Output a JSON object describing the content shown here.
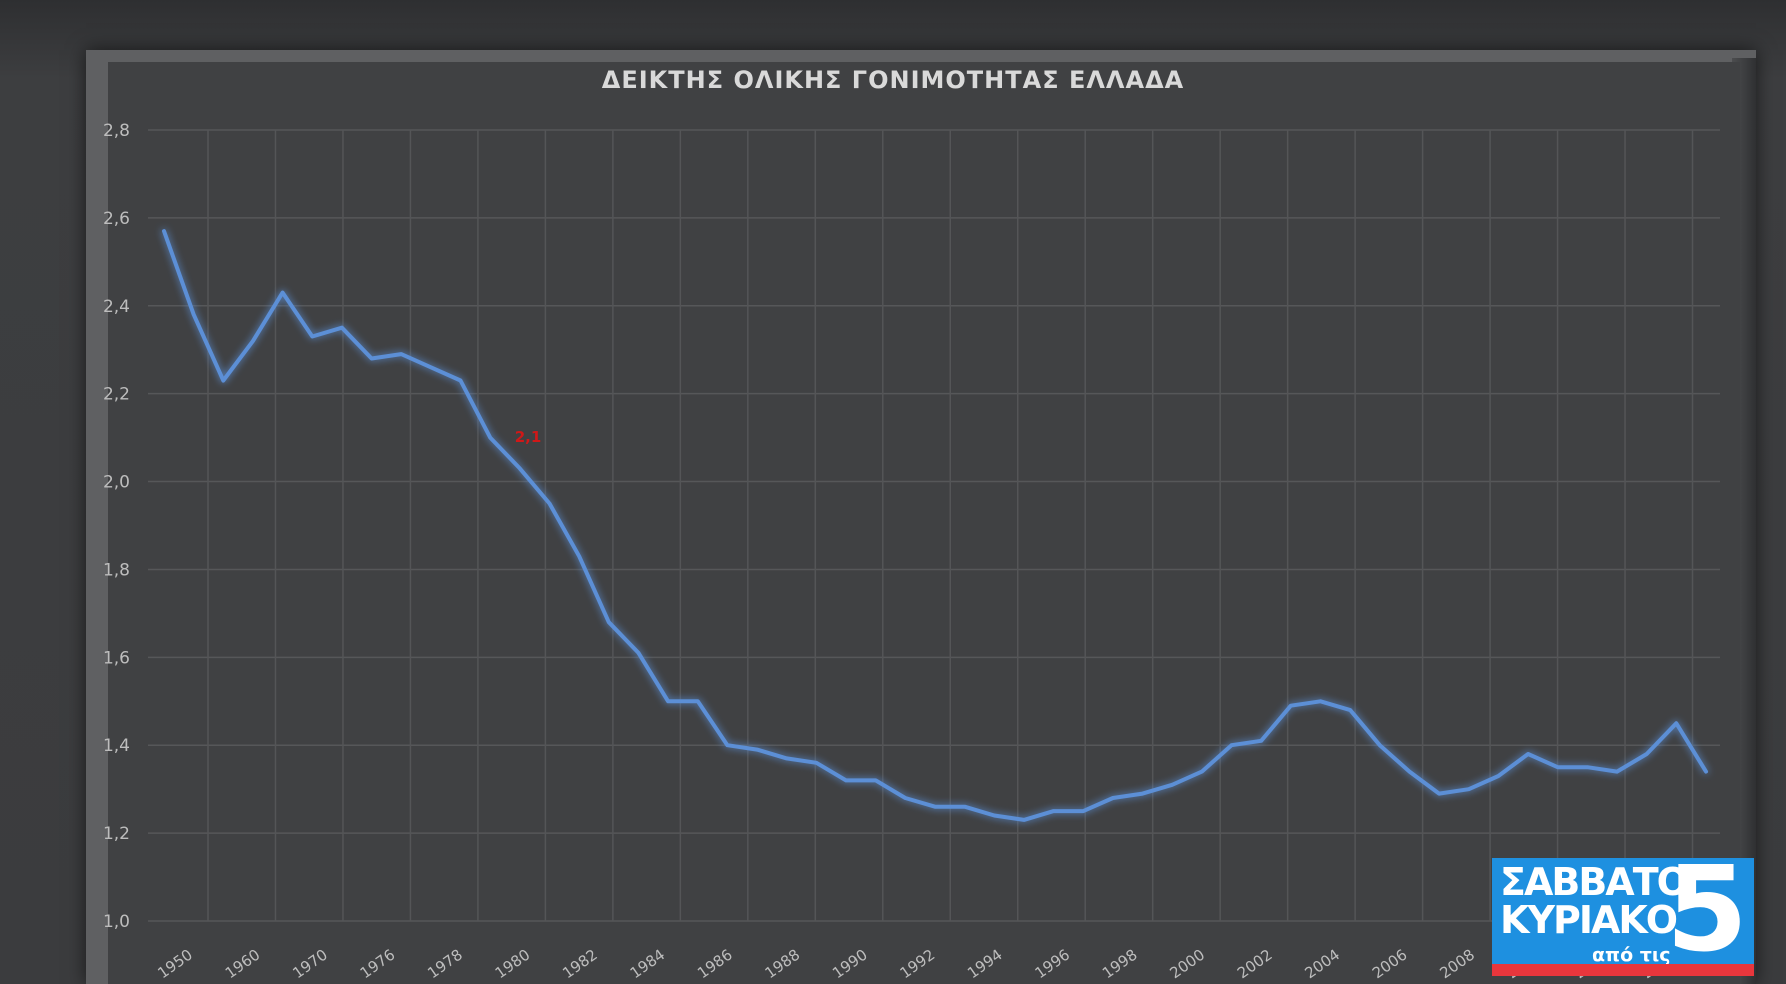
{
  "chart_data": {
    "type": "line",
    "title": "ΔΕΙΚΤΗΣ ΟΛΙΚΗΣ ΓΟΝΙΜΟΤΗΤΑΣ ΕΛΛΑΔΑ",
    "xlabel": "",
    "ylabel": "",
    "ylim": [
      1.0,
      2.8
    ],
    "yticks": [
      "2,8",
      "2,6",
      "2,4",
      "2,2",
      "2,0",
      "1,8",
      "1,6",
      "1,4",
      "1,2",
      "1,0"
    ],
    "xticks": [
      "1950",
      "1960",
      "1970",
      "1976",
      "1978",
      "1980",
      "1982",
      "1984",
      "1986",
      "1988",
      "1990",
      "1992",
      "1994",
      "1996",
      "1998",
      "2000",
      "2002",
      "2004",
      "2006",
      "2008",
      "2010",
      "2012",
      "2014"
    ],
    "grid": true,
    "line_color": "#5b8fd6",
    "annotation": {
      "text": "2,1",
      "color": "#d01818"
    },
    "values": [
      2.57,
      2.38,
      2.23,
      2.32,
      2.43,
      2.33,
      2.35,
      2.28,
      2.29,
      2.26,
      2.23,
      2.1,
      2.03,
      1.95,
      1.83,
      1.68,
      1.61,
      1.5,
      1.5,
      1.4,
      1.39,
      1.37,
      1.36,
      1.32,
      1.32,
      1.28,
      1.26,
      1.26,
      1.24,
      1.23,
      1.25,
      1.25,
      1.28,
      1.29,
      1.31,
      1.34,
      1.4,
      1.41,
      1.49,
      1.5,
      1.48,
      1.4,
      1.34,
      1.29,
      1.3,
      1.33,
      1.38,
      1.35,
      1.35,
      1.34,
      1.38,
      1.45,
      1.34
    ]
  },
  "logo": {
    "line1": "ΣΑΒΒΑΤΟ",
    "line2": "ΚΥΡΙΑΚΟ",
    "sub": "από τις",
    "number": "5"
  }
}
